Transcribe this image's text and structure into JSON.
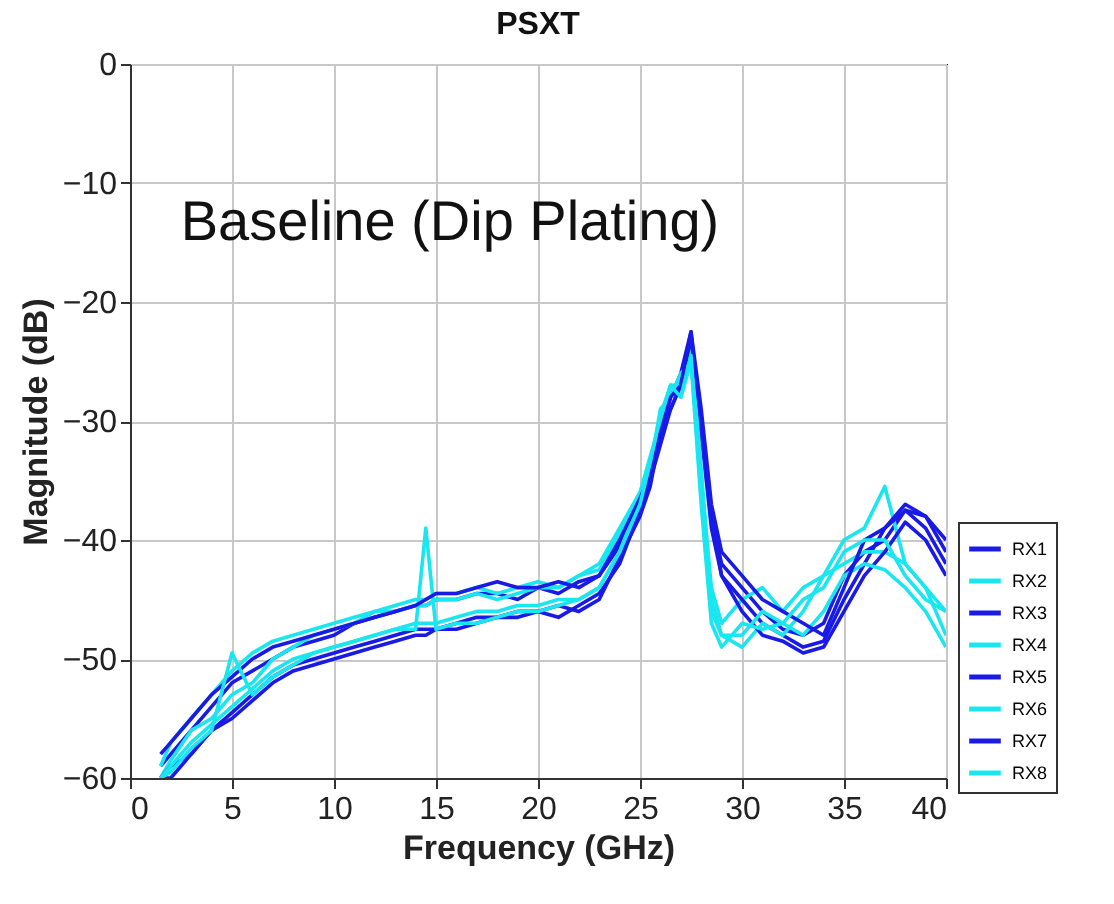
{
  "chart_data": {
    "type": "line",
    "title": "PSXT",
    "xlabel": "Frequency (GHz)",
    "ylabel": "Magnitude (dB)",
    "annotations": [
      "Baseline (Dip Plating)"
    ],
    "x": [
      1.5,
      2,
      3,
      4,
      5,
      6,
      7,
      8,
      9,
      10,
      11,
      12,
      13,
      14,
      14.5,
      15,
      16,
      17,
      18,
      19,
      20,
      21,
      22,
      23,
      24,
      25,
      25.5,
      26,
      26.5,
      27,
      27.5,
      28,
      28.5,
      29,
      30,
      31,
      32,
      33,
      34,
      35,
      36,
      37,
      38,
      39,
      40
    ],
    "xlim": [
      0,
      40
    ],
    "xticks": [
      0,
      5,
      10,
      15,
      20,
      25,
      30,
      35,
      40
    ],
    "ylim": [
      -60,
      0
    ],
    "yticks": [
      -60,
      -50,
      -40,
      -30,
      -20,
      -10,
      0
    ],
    "grid": true,
    "legend": "bottom right",
    "line_style": "solid",
    "marker": "none",
    "series": [
      {
        "name": "RX1",
        "color": "#1a1ae6",
        "values": [
          -59,
          -58,
          -56,
          -54,
          -52,
          -51,
          -50,
          -49,
          -48.5,
          -48,
          -47,
          -46.5,
          -46,
          -45.5,
          -45.5,
          -45,
          -45,
          -44.5,
          -44.5,
          -45,
          -44,
          -44.5,
          -43.5,
          -43,
          -40.5,
          -37,
          -35,
          -32,
          -29,
          -27,
          -23,
          -30,
          -38,
          -42,
          -44,
          -46,
          -47.5,
          -48,
          -47,
          -43,
          -41,
          -40,
          -37.5,
          -39,
          -42
        ]
      },
      {
        "name": "RX2",
        "color": "#1ae6f0",
        "values": [
          -60,
          -58.5,
          -56,
          -55,
          -53,
          -52,
          -50,
          -49,
          -48,
          -47.5,
          -47,
          -46,
          -45.5,
          -45,
          -45,
          -44.5,
          -44.5,
          -44,
          -44.5,
          -44,
          -43.5,
          -44,
          -43,
          -42,
          -39,
          -36,
          -33,
          -30,
          -27,
          -28,
          -25,
          -35,
          -44,
          -47,
          -45,
          -44,
          -46,
          -44,
          -43,
          -40,
          -39,
          -35.5,
          -42,
          -44,
          -48
        ]
      },
      {
        "name": "RX3",
        "color": "#1a1ae6",
        "values": [
          -60,
          -59,
          -58,
          -56,
          -54.5,
          -53,
          -51.5,
          -50.5,
          -50,
          -49.5,
          -49,
          -48.5,
          -48,
          -47.5,
          -47.5,
          -47.5,
          -47,
          -46.5,
          -46.5,
          -46,
          -46,
          -46.5,
          -45.5,
          -44.5,
          -42,
          -37.5,
          -35,
          -31,
          -28,
          -26,
          -22.5,
          -31,
          -39,
          -43,
          -45,
          -47,
          -48,
          -49,
          -48.5,
          -45,
          -42,
          -39,
          -37.5,
          -38,
          -41
        ]
      },
      {
        "name": "RX4",
        "color": "#1ae6f0",
        "values": [
          -59,
          -57,
          -55,
          -53,
          -51,
          -49.5,
          -48.5,
          -48,
          -47.5,
          -47,
          -46.5,
          -46,
          -46,
          -45.5,
          -45.5,
          -45,
          -45,
          -44.5,
          -45,
          -44.5,
          -44,
          -44,
          -43,
          -42.5,
          -39.5,
          -36,
          -34,
          -30,
          -27,
          -27,
          -24,
          -34,
          -45,
          -48,
          -49,
          -47,
          -48,
          -46,
          -43,
          -42,
          -41,
          -41,
          -42,
          -44,
          -46
        ]
      },
      {
        "name": "RX5",
        "color": "#1a1ae6",
        "values": [
          -60,
          -60,
          -58,
          -56,
          -55,
          -53.5,
          -52,
          -51,
          -50.5,
          -50,
          -49.5,
          -49,
          -48.5,
          -48,
          -48,
          -47.5,
          -47.5,
          -47,
          -46.5,
          -46.5,
          -46,
          -45.5,
          -46,
          -45,
          -41.5,
          -38,
          -35.5,
          -31,
          -29,
          -27,
          -23,
          -30,
          -38,
          -43,
          -46,
          -48,
          -48.5,
          -49.5,
          -49,
          -46,
          -43,
          -41,
          -38.5,
          -40,
          -43
        ]
      },
      {
        "name": "RX6",
        "color": "#1ae6f0",
        "values": [
          -60,
          -59,
          -57,
          -55.5,
          -54,
          -52.5,
          -51,
          -50,
          -49.5,
          -49,
          -48.5,
          -48,
          -47.5,
          -47.5,
          -39,
          -47.5,
          -47,
          -47,
          -46.5,
          -46,
          -46,
          -45.5,
          -45,
          -44,
          -41,
          -36.5,
          -34,
          -29,
          -28,
          -26,
          -25,
          -37,
          -47,
          -49,
          -47,
          -47.5,
          -47,
          -48,
          -46,
          -43,
          -42,
          -42.5,
          -44,
          -46,
          -49
        ]
      },
      {
        "name": "RX7",
        "color": "#1a1ae6",
        "values": [
          -58,
          -57,
          -55,
          -53,
          -51.5,
          -50,
          -49,
          -48.5,
          -48,
          -47.5,
          -47,
          -46.5,
          -46,
          -45.5,
          -45,
          -44.5,
          -44.5,
          -44,
          -43.5,
          -44,
          -44,
          -43.5,
          -44,
          -43,
          -40,
          -36.5,
          -34.5,
          -31,
          -28,
          -27,
          -22.5,
          -29,
          -37,
          -41,
          -43,
          -45,
          -46,
          -47,
          -48,
          -44,
          -40,
          -39,
          -37,
          -38,
          -40
        ]
      },
      {
        "name": "RX8",
        "color": "#1ae6f0",
        "values": [
          -60,
          -59.5,
          -57.5,
          -56,
          -49.5,
          -53,
          -51.5,
          -50.5,
          -49.5,
          -49,
          -48.5,
          -48,
          -47.5,
          -47,
          -47,
          -47,
          -46.5,
          -46,
          -46,
          -45.5,
          -45.5,
          -45,
          -45,
          -44,
          -41,
          -37,
          -33.5,
          -29.5,
          -27,
          -28,
          -24.5,
          -36,
          -46,
          -48,
          -48,
          -46,
          -47,
          -45,
          -44,
          -41,
          -40,
          -40,
          -43,
          -45,
          -46
        ]
      }
    ]
  }
}
